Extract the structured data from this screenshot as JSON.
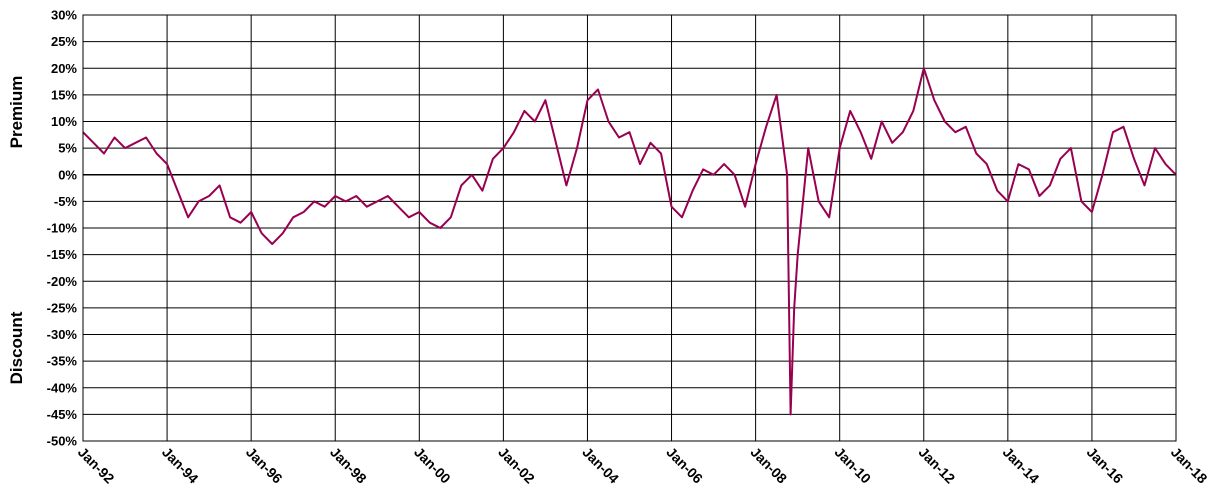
{
  "chart_data": {
    "type": "line",
    "ylabel_top": "Premium",
    "ylabel_bottom": "Discount",
    "ylim": [
      -50,
      30
    ],
    "yticks": [
      "30%",
      "25%",
      "20%",
      "15%",
      "10%",
      "5%",
      "0%",
      "-5%",
      "-10%",
      "-15%",
      "-20%",
      "-25%",
      "-30%",
      "-35%",
      "-40%",
      "-45%",
      "-50%"
    ],
    "xticks": [
      "Jan-92",
      "Jan-94",
      "Jan-96",
      "Jan-98",
      "Jan-00",
      "Jan-02",
      "Jan-04",
      "Jan-06",
      "Jan-08",
      "Jan-10",
      "Jan-12",
      "Jan-14",
      "Jan-16",
      "Jan-18"
    ],
    "xlim": [
      "1992-01",
      "2018-01"
    ],
    "line_color": "#990050",
    "grid": true,
    "series": [
      {
        "x": [
          "1992-01",
          "1992-04",
          "1992-07",
          "1992-10",
          "1993-01",
          "1993-04",
          "1993-07",
          "1993-10",
          "1994-01",
          "1994-04",
          "1994-07",
          "1994-10",
          "1995-01",
          "1995-04",
          "1995-07",
          "1995-10",
          "1996-01",
          "1996-04",
          "1996-07",
          "1996-10",
          "1997-01",
          "1997-04",
          "1997-07",
          "1997-10",
          "1998-01",
          "1998-04",
          "1998-07",
          "1998-10",
          "1999-01",
          "1999-04",
          "1999-07",
          "1999-10",
          "2000-01",
          "2000-04",
          "2000-07",
          "2000-10",
          "2001-01",
          "2001-04",
          "2001-07",
          "2001-10",
          "2002-01",
          "2002-04",
          "2002-07",
          "2002-10",
          "2003-01",
          "2003-04",
          "2003-07",
          "2003-10",
          "2004-01",
          "2004-04",
          "2004-07",
          "2004-10",
          "2005-01",
          "2005-04",
          "2005-07",
          "2005-10",
          "2006-01",
          "2006-04",
          "2006-07",
          "2006-10",
          "2007-01",
          "2007-04",
          "2007-07",
          "2007-10",
          "2008-01",
          "2008-04",
          "2008-07",
          "2008-10",
          "2008-11",
          "2008-12",
          "2009-01",
          "2009-04",
          "2009-07",
          "2009-10",
          "2010-01",
          "2010-04",
          "2010-07",
          "2010-10",
          "2011-01",
          "2011-04",
          "2011-07",
          "2011-10",
          "2012-01",
          "2012-04",
          "2012-07",
          "2012-10",
          "2013-01",
          "2013-04",
          "2013-07",
          "2013-10",
          "2014-01",
          "2014-04",
          "2014-07",
          "2014-10",
          "2015-01",
          "2015-04",
          "2015-07",
          "2015-10",
          "2016-01",
          "2016-04",
          "2016-07",
          "2016-10",
          "2017-01",
          "2017-04",
          "2017-07",
          "2017-10",
          "2018-01"
        ],
        "y": [
          8,
          6,
          4,
          7,
          5,
          6,
          7,
          4,
          2,
          -3,
          -8,
          -5,
          -4,
          -2,
          -8,
          -9,
          -7,
          -11,
          -13,
          -11,
          -8,
          -7,
          -5,
          -6,
          -4,
          -5,
          -4,
          -6,
          -5,
          -4,
          -6,
          -8,
          -7,
          -9,
          -10,
          -8,
          -2,
          0,
          -3,
          3,
          5,
          8,
          12,
          10,
          14,
          6,
          -2,
          5,
          14,
          16,
          10,
          7,
          8,
          2,
          6,
          4,
          -6,
          -8,
          -3,
          1,
          0,
          2,
          0,
          -6,
          2,
          9,
          15,
          0,
          -45,
          -25,
          -15,
          5,
          -5,
          -8,
          5,
          12,
          8,
          3,
          10,
          6,
          8,
          12,
          20,
          14,
          10,
          8,
          9,
          4,
          2,
          -3,
          -5,
          2,
          1,
          -4,
          -2,
          3,
          5,
          -5,
          -7,
          0,
          8,
          9,
          3,
          -2,
          5,
          2,
          0
        ]
      }
    ]
  }
}
